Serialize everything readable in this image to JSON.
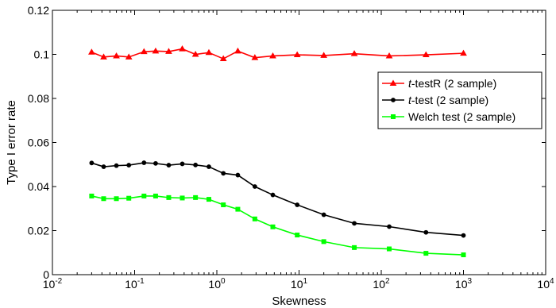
{
  "chart_data": {
    "type": "line",
    "xlabel": "Skewness",
    "ylabel": "Type I error rate",
    "xscale": "log",
    "xlim": [
      0.01,
      10000
    ],
    "ylim": [
      0,
      0.12
    ],
    "x_ticks": [
      {
        "value": 0.01,
        "base": "10",
        "exp": "-2"
      },
      {
        "value": 0.1,
        "base": "10",
        "exp": "-1"
      },
      {
        "value": 1,
        "base": "10",
        "exp": "0"
      },
      {
        "value": 10,
        "base": "10",
        "exp": "1"
      },
      {
        "value": 100,
        "base": "10",
        "exp": "2"
      },
      {
        "value": 1000,
        "base": "10",
        "exp": "3"
      },
      {
        "value": 10000,
        "base": "10",
        "exp": "4"
      }
    ],
    "y_ticks": [
      {
        "value": 0,
        "label": "0"
      },
      {
        "value": 0.02,
        "label": "0.02"
      },
      {
        "value": 0.04,
        "label": "0.04"
      },
      {
        "value": 0.06,
        "label": "0.06"
      },
      {
        "value": 0.08,
        "label": "0.08"
      },
      {
        "value": 0.1,
        "label": "0.1"
      },
      {
        "value": 0.12,
        "label": "0.12"
      }
    ],
    "grid": false,
    "legend_position": "right",
    "x": [
      0.03,
      0.042,
      0.06,
      0.085,
      0.13,
      0.18,
      0.26,
      0.38,
      0.55,
      0.8,
      1.2,
      1.8,
      2.9,
      4.8,
      9.5,
      20,
      47,
      125,
      350,
      1000
    ],
    "series": [
      {
        "name": "t-testR (2 sample)",
        "name_italic": "t",
        "name_rest": "-testR (2 sample)",
        "color": "#ff0000",
        "marker": "triangle",
        "values": [
          0.101,
          0.0988,
          0.0993,
          0.0988,
          0.1012,
          0.1015,
          0.1013,
          0.1025,
          0.1,
          0.1008,
          0.098,
          0.1015,
          0.0985,
          0.0993,
          0.0998,
          0.0995,
          0.1003,
          0.0993,
          0.0998,
          0.1005
        ]
      },
      {
        "name": "t-test (2 sample)",
        "name_italic": "t",
        "name_rest": "-test (2 sample)",
        "color": "#000000",
        "marker": "circle",
        "values": [
          0.0507,
          0.049,
          0.0495,
          0.0497,
          0.0508,
          0.0505,
          0.0497,
          0.0503,
          0.0498,
          0.049,
          0.046,
          0.0452,
          0.04,
          0.0362,
          0.0317,
          0.0272,
          0.0233,
          0.0218,
          0.0192,
          0.0178
        ]
      },
      {
        "name": "Welch test (2 sample)",
        "name_italic": "",
        "name_rest": "Welch test (2 sample)",
        "color": "#00ff00",
        "marker": "square",
        "values": [
          0.0357,
          0.0345,
          0.0345,
          0.0347,
          0.0357,
          0.0357,
          0.035,
          0.0348,
          0.035,
          0.0342,
          0.0317,
          0.0297,
          0.0253,
          0.0217,
          0.018,
          0.015,
          0.0123,
          0.0117,
          0.0097,
          0.009
        ]
      }
    ]
  }
}
